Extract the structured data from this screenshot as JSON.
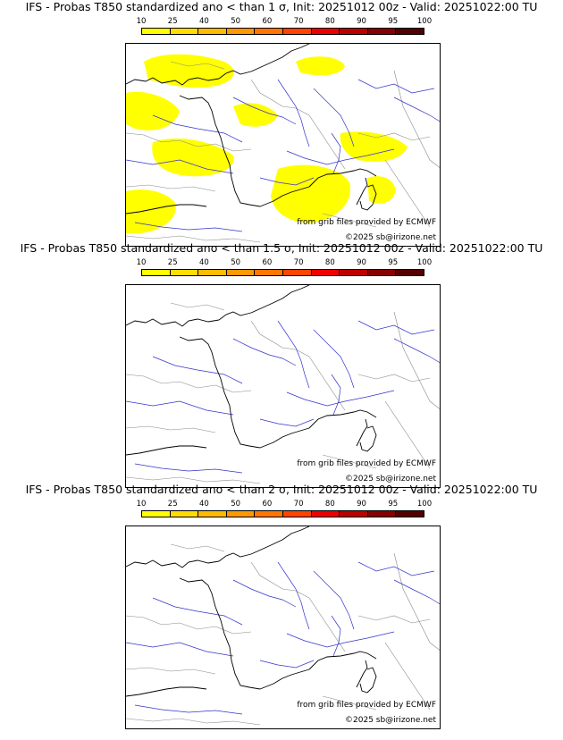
{
  "colorbar": {
    "ticks": [
      "10",
      "25",
      "40",
      "50",
      "60",
      "70",
      "80",
      "90",
      "95",
      "100"
    ],
    "colors": [
      "#ffff00",
      "#ffdd00",
      "#ffbb00",
      "#ff9900",
      "#ff7700",
      "#ff4400",
      "#ee0000",
      "#bb0000",
      "#880000",
      "#550000"
    ]
  },
  "colors": {
    "anomaly_fill": "#ffff00",
    "rivers": "#3333cc",
    "borders": "#888888",
    "coast": "#000000"
  },
  "panels": [
    {
      "title": "IFS - Probas T850  standardized ano < than 1 σ, Init: 20251012 00z - Valid: 20251022:00 TU",
      "has_fill": true
    },
    {
      "title": "IFS - Probas T850  standardized ano < than 1.5 σ, Init: 20251012 00z - Valid: 20251022:00 TU",
      "has_fill": false
    },
    {
      "title": "IFS - Probas T850  standardized ano < than 2 σ, Init: 20251012 00z - Valid: 20251022:00 TU",
      "has_fill": false
    }
  ],
  "credits": {
    "source": "from grib files provided by ECMWF",
    "copyright": "©2025 sb@irizone.net"
  }
}
